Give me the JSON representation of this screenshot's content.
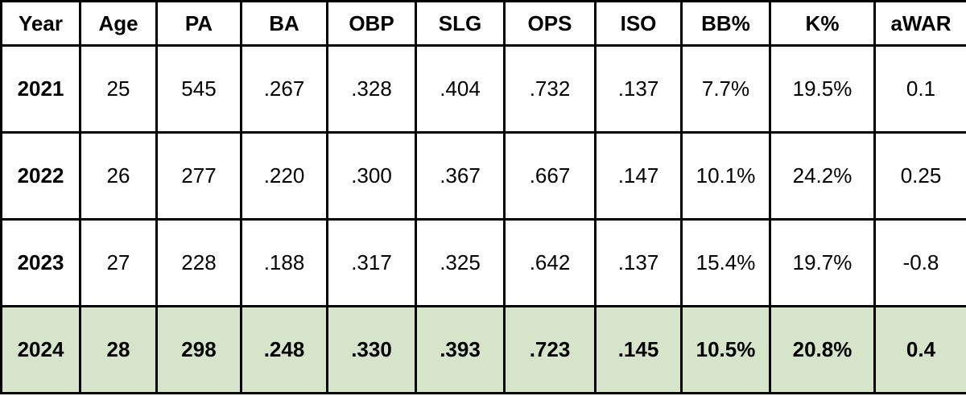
{
  "table": {
    "header": [
      "Year",
      "Age",
      "PA",
      "BA",
      "OBP",
      "SLG",
      "OPS",
      "ISO",
      "BB%",
      "K%",
      "aWAR"
    ],
    "rows": [
      [
        "2021",
        "25",
        "545",
        ".267",
        ".328",
        ".404",
        ".732",
        ".137",
        "7.7%",
        "19.5%",
        "0.1"
      ],
      [
        "2022",
        "26",
        "277",
        ".220",
        ".300",
        ".367",
        ".667",
        ".147",
        "10.1%",
        "24.2%",
        "0.25"
      ],
      [
        "2023",
        "27",
        "228",
        ".188",
        ".317",
        ".325",
        ".642",
        ".137",
        "15.4%",
        "19.7%",
        "-0.8"
      ],
      [
        "2024",
        "28",
        "298",
        ".248",
        ".330",
        ".393",
        ".723",
        ".145",
        "10.5%",
        "20.8%",
        "0.4"
      ]
    ]
  }
}
